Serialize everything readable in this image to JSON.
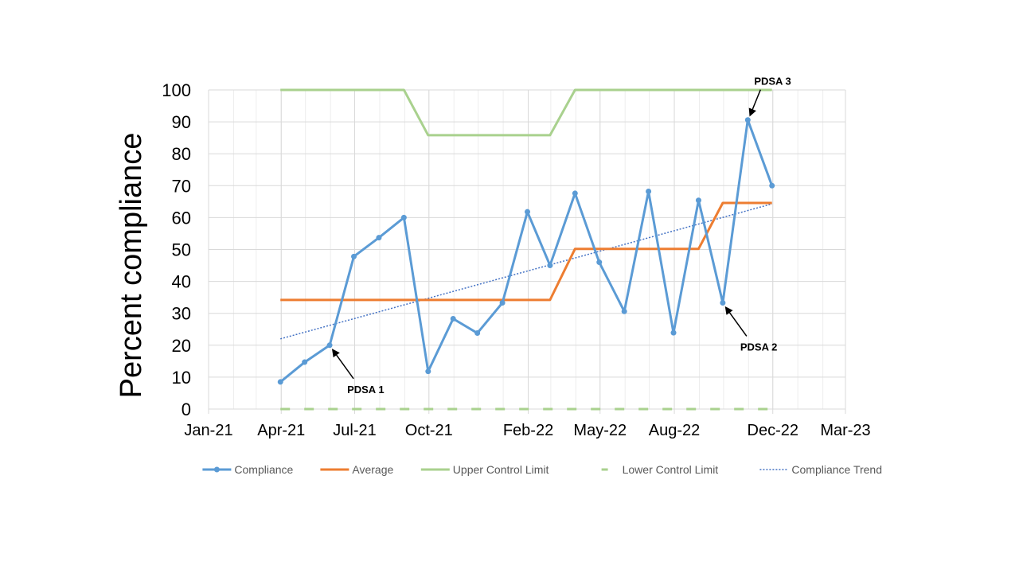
{
  "chart_data": {
    "type": "line",
    "ylabel": "Percent compliance",
    "xlabel": "",
    "title": "",
    "ylim": [
      0,
      100
    ],
    "y_ticks": [
      0,
      10,
      20,
      30,
      40,
      50,
      60,
      70,
      80,
      90,
      100
    ],
    "x_ticks": [
      "Jan-21",
      "Apr-21",
      "Jul-21",
      "Oct-21",
      "Feb-22",
      "May-22",
      "Aug-22",
      "Dec-22",
      "Mar-23"
    ],
    "x_tick_dates": [
      "2021-01-01",
      "2021-04-01",
      "2021-07-01",
      "2021-10-01",
      "2022-02-01",
      "2022-05-01",
      "2022-08-01",
      "2022-12-01",
      "2023-03-01"
    ],
    "xlim": [
      "2021-01-01",
      "2023-03-01"
    ],
    "grid": true,
    "legend_position": "bottom",
    "series": [
      {
        "name": "Compliance",
        "color": "#5B9BD5",
        "style": "line-markers",
        "points": [
          {
            "x": "2021-03-31",
            "y": 8.5
          },
          {
            "x": "2021-04-30",
            "y": 14.7
          },
          {
            "x": "2021-05-31",
            "y": 20.0
          },
          {
            "x": "2021-06-30",
            "y": 47.8
          },
          {
            "x": "2021-07-31",
            "y": 53.7
          },
          {
            "x": "2021-08-31",
            "y": 60.0
          },
          {
            "x": "2021-09-30",
            "y": 11.8
          },
          {
            "x": "2021-10-31",
            "y": 28.3
          },
          {
            "x": "2021-11-30",
            "y": 23.8
          },
          {
            "x": "2021-12-31",
            "y": 33.3
          },
          {
            "x": "2022-01-31",
            "y": 61.8
          },
          {
            "x": "2022-02-28",
            "y": 45.0
          },
          {
            "x": "2022-03-31",
            "y": 67.6
          },
          {
            "x": "2022-04-30",
            "y": 46.0
          },
          {
            "x": "2022-05-31",
            "y": 30.6
          },
          {
            "x": "2022-06-30",
            "y": 68.2
          },
          {
            "x": "2022-07-31",
            "y": 23.9
          },
          {
            "x": "2022-08-31",
            "y": 65.4
          },
          {
            "x": "2022-09-30",
            "y": 33.3
          },
          {
            "x": "2022-10-31",
            "y": 90.6
          },
          {
            "x": "2022-11-30",
            "y": 70.0
          }
        ]
      },
      {
        "name": "Average",
        "color": "#ED7D31",
        "style": "line",
        "points": [
          {
            "x": "2021-03-31",
            "y": 34.2
          },
          {
            "x": "2022-02-28",
            "y": 34.2
          },
          {
            "x": "2022-03-31",
            "y": 50.2
          },
          {
            "x": "2022-08-31",
            "y": 50.2
          },
          {
            "x": "2022-09-30",
            "y": 64.6
          },
          {
            "x": "2022-11-30",
            "y": 64.6
          }
        ]
      },
      {
        "name": "Upper Control Limit",
        "color": "#A9D18E",
        "style": "line",
        "points": [
          {
            "x": "2021-03-31",
            "y": 100
          },
          {
            "x": "2021-08-31",
            "y": 100
          },
          {
            "x": "2021-09-30",
            "y": 85.8
          },
          {
            "x": "2022-02-28",
            "y": 85.8
          },
          {
            "x": "2022-03-31",
            "y": 100
          },
          {
            "x": "2022-11-30",
            "y": 100
          }
        ]
      },
      {
        "name": "Lower Control Limit",
        "color": "#A9D18E",
        "style": "dash",
        "points": [
          {
            "x": "2021-03-31",
            "y": 0
          },
          {
            "x": "2022-11-30",
            "y": 0
          }
        ]
      },
      {
        "name": "Compliance Trend",
        "color": "#4472C4",
        "style": "dotted",
        "points": [
          {
            "x": "2021-03-31",
            "y": 22.0
          },
          {
            "x": "2022-11-30",
            "y": 64.3
          }
        ]
      }
    ],
    "annotations": [
      {
        "text": "PDSA 1",
        "target": {
          "x": "2021-05-31",
          "y": 20.0
        },
        "label_position": "below-right"
      },
      {
        "text": "PDSA 2",
        "target": {
          "x": "2022-09-30",
          "y": 33.3
        },
        "label_position": "below-right"
      },
      {
        "text": "PDSA 3",
        "target": {
          "x": "2022-10-31",
          "y": 90.6
        },
        "label_position": "above-right"
      }
    ]
  }
}
